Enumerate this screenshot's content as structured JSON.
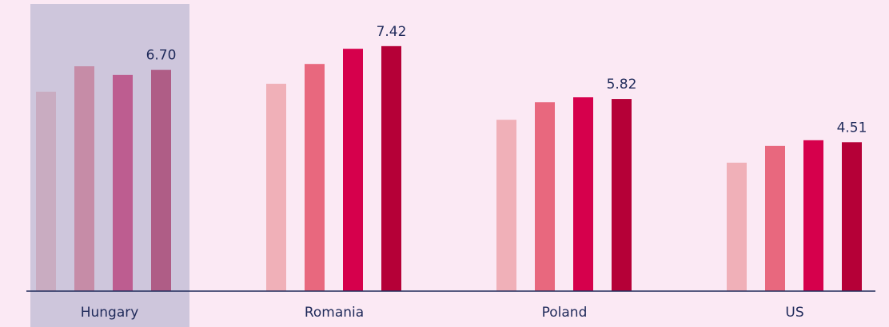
{
  "chart_data": {
    "type": "bar",
    "categories": [
      "Hungary",
      "Romania",
      "Poland",
      "US"
    ],
    "series": [
      {
        "color": "#f0b0b8",
        "values": [
          6.04,
          6.28,
          5.19,
          3.89
        ]
      },
      {
        "color": "#e8687e",
        "values": [
          6.81,
          6.88,
          5.72,
          4.4
        ]
      },
      {
        "color": "#d6004c",
        "values": [
          6.55,
          7.34,
          5.87,
          4.57
        ]
      },
      {
        "color": "#b50037",
        "values": [
          6.7,
          7.42,
          5.82,
          4.51
        ],
        "value_labels": [
          "6.70",
          "7.42",
          "5.82",
          "4.51"
        ]
      }
    ],
    "ylim": [
      0,
      8.6
    ],
    "highlight": 0
  }
}
